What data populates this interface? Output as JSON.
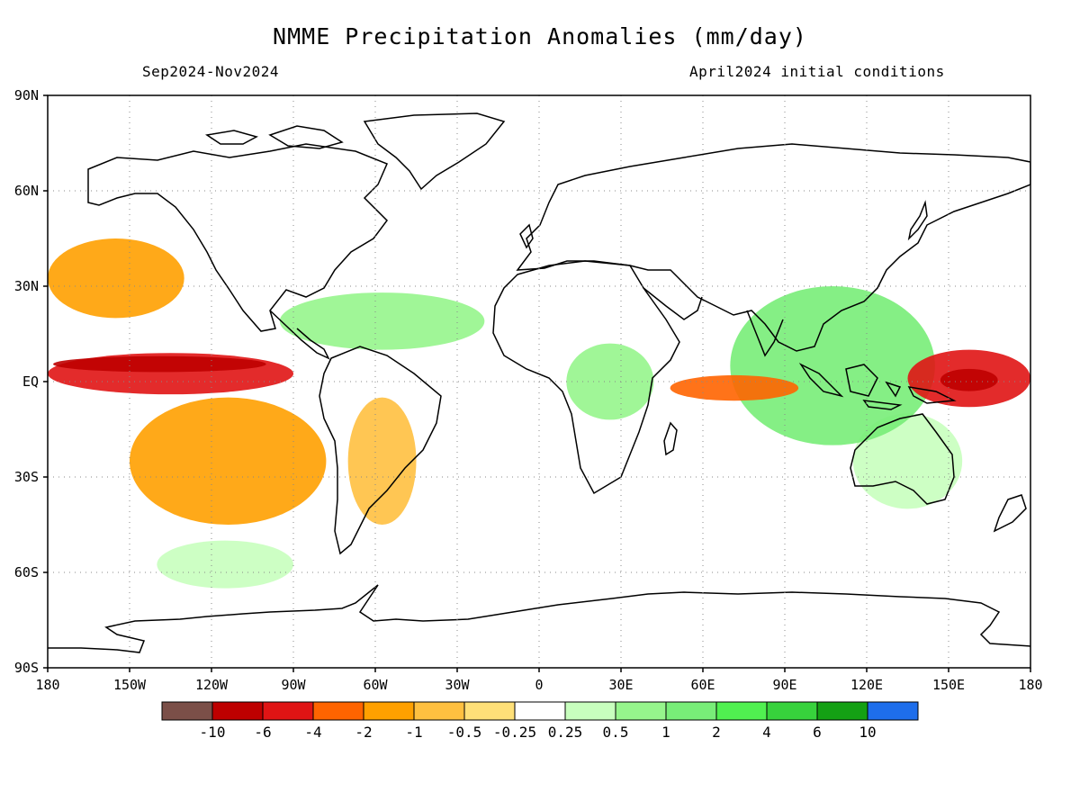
{
  "header": {
    "title": "NMME Precipitation Anomalies (mm/day)",
    "period": "Sep2024-Nov2024",
    "init": "April2024 initial conditions"
  },
  "map": {
    "lat_labels": [
      "90N",
      "60N",
      "30N",
      "EQ",
      "30S",
      "60S",
      "90S"
    ],
    "lat_values": [
      90,
      60,
      30,
      0,
      -30,
      -60,
      -90
    ],
    "lon_labels": [
      "180",
      "150W",
      "120W",
      "90W",
      "60W",
      "30W",
      "0",
      "30E",
      "60E",
      "90E",
      "120E",
      "150E",
      "180"
    ],
    "lon_values": [
      -180,
      -150,
      -120,
      -90,
      -60,
      -30,
      0,
      30,
      60,
      90,
      120,
      150,
      180
    ],
    "grid": "dotted",
    "features": [
      {
        "name": "central-pacific-dry-band",
        "level": -6,
        "lon": [
          -178,
          -100
        ],
        "lat": [
          3,
          8
        ]
      },
      {
        "name": "equatorial-pacific-dry",
        "level": -4,
        "lon": [
          -180,
          -90
        ],
        "lat": [
          -4,
          9
        ]
      },
      {
        "name": "se-pacific-dry-tongue",
        "level": -1,
        "lon": [
          -150,
          -78
        ],
        "lat": [
          -45,
          -5
        ]
      },
      {
        "name": "w-pacific-dry-core",
        "level": -6,
        "lon": [
          147,
          168
        ],
        "lat": [
          -3,
          4
        ]
      },
      {
        "name": "w-pacific-dry",
        "level": -4,
        "lon": [
          135,
          180
        ],
        "lat": [
          -8,
          10
        ]
      },
      {
        "name": "maritime-continent-wet",
        "level": 2,
        "lon": [
          70,
          145
        ],
        "lat": [
          -20,
          30
        ]
      },
      {
        "name": "caribbean-wet",
        "level": 1,
        "lon": [
          -95,
          -20
        ],
        "lat": [
          10,
          28
        ]
      },
      {
        "name": "central-africa-wet",
        "level": 1,
        "lon": [
          10,
          42
        ],
        "lat": [
          -12,
          12
        ]
      },
      {
        "name": "australia-wet",
        "level": 0.5,
        "lon": [
          115,
          155
        ],
        "lat": [
          -40,
          -10
        ]
      },
      {
        "name": "southern-ocean-wet",
        "level": 0.5,
        "lon": [
          -140,
          -90
        ],
        "lat": [
          -65,
          -50
        ]
      },
      {
        "name": "n-pacific-dry",
        "level": -1,
        "lon": [
          -180,
          -130
        ],
        "lat": [
          20,
          45
        ]
      },
      {
        "name": "amazon-dry",
        "level": -0.5,
        "lon": [
          -70,
          -45
        ],
        "lat": [
          -45,
          -5
        ]
      },
      {
        "name": "indian-ocean-dry",
        "level": -2,
        "lon": [
          48,
          95
        ],
        "lat": [
          -6,
          2
        ]
      }
    ]
  },
  "colorbar": {
    "labels": [
      "-10",
      "-6",
      "-4",
      "-2",
      "-1",
      "-0.5",
      "-0.25",
      "0.25",
      "0.5",
      "1",
      "2",
      "4",
      "6",
      "10"
    ],
    "colors": [
      "#7b4f48",
      "#be0000",
      "#e01414",
      "#ff6400",
      "#ffa000",
      "#ffc040",
      "#ffe078",
      "#ffffff",
      "#c8ffbe",
      "#96f58c",
      "#78ed78",
      "#50f050",
      "#37d23c",
      "#14a014",
      "#1e6eeb"
    ]
  }
}
